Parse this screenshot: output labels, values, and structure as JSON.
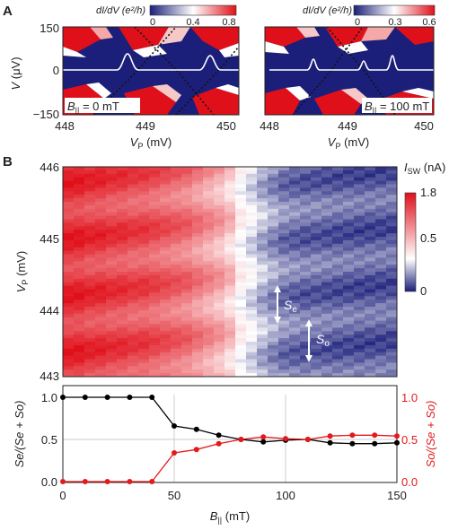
{
  "panel_a": {
    "letter": "A",
    "y_label_main": "V",
    "y_label_unit": " (μV)",
    "y_ticks": [
      "150",
      "0",
      "−150"
    ],
    "x_label_main": "V",
    "x_label_sub": "P",
    "x_label_unit": " (mV)",
    "left": {
      "cbar_title": "dI/dV (e²/h)",
      "cbar_ticks": [
        "0",
        "0.4",
        "0.8"
      ],
      "x_ticks": [
        "448",
        "449",
        "450"
      ],
      "field_main": "B",
      "field_sub": "||",
      "field_value": " = 0 mT"
    },
    "right": {
      "cbar_title": "dI/dV (e²/h)",
      "cbar_ticks": [
        "0",
        "0.3",
        "0.6"
      ],
      "x_ticks": [
        "448",
        "449",
        "450"
      ],
      "field_main": "B",
      "field_sub": "||",
      "field_value": " = 100 mT"
    }
  },
  "panel_b": {
    "letter": "B",
    "heatmap": {
      "y_label_main": "V",
      "y_label_sub": "P",
      "y_label_unit": " (mV)",
      "y_ticks": [
        "446",
        "445",
        "444",
        "443"
      ],
      "cbar_label_main": "I",
      "cbar_label_sub": "SW",
      "cbar_label_unit": " (nA)",
      "cbar_ticks": [
        "1.8",
        "0.5",
        "0"
      ],
      "arrow_even_main": "S",
      "arrow_even_sub": "e",
      "arrow_odd_main": "S",
      "arrow_odd_sub": "o"
    },
    "fraction_plot": {
      "x_label_main": "B",
      "x_label_sub": "||",
      "x_label_unit": " (mT)",
      "x_ticks": [
        "0",
        "50",
        "100",
        "150"
      ],
      "y_ticks_left": [
        "1.0",
        "0.5",
        "0.0"
      ],
      "y_ticks_right": [
        "1.0",
        "0.5",
        "0.0"
      ],
      "left_label": "Se/(Se + So)",
      "right_label": "So/(Se + So)"
    }
  },
  "colors": {
    "red": "#e0101a",
    "white": "#ffffff",
    "navy": "#1b1f7a",
    "series_even": "#000000",
    "series_odd": "#e31a1c"
  },
  "chart_data": [
    {
      "type": "line",
      "xlabel": "B|| (mT)",
      "ylabel": "Se/(Se + So)",
      "y2label": "So/(Se + So)",
      "xlim": [
        0,
        150
      ],
      "ylim": [
        0,
        1.1
      ],
      "grid": true,
      "x": [
        0,
        10,
        20,
        30,
        40,
        50,
        60,
        70,
        80,
        90,
        100,
        110,
        120,
        130,
        140,
        150
      ],
      "series": [
        {
          "values": [
            1.0,
            1.0,
            1.0,
            1.0,
            1.0,
            0.66,
            0.62,
            0.55,
            0.5,
            0.47,
            0.49,
            0.5,
            0.46,
            0.45,
            0.45,
            0.46
          ]
        },
        {
          "values": [
            0.0,
            0.0,
            0.0,
            0.0,
            0.0,
            0.34,
            0.38,
            0.45,
            0.5,
            0.53,
            0.51,
            0.5,
            0.54,
            0.55,
            0.55,
            0.54
          ]
        }
      ]
    },
    {
      "type": "heatmap",
      "xlabel": "B|| (mT)",
      "ylabel": "VP (mV)",
      "xlim": [
        0,
        150
      ],
      "ylim": [
        443,
        446
      ],
      "colorbar_label": "ISW (nA)",
      "colorbar_range": [
        0,
        1.8
      ],
      "x_column_values": [
        0,
        5,
        10,
        15,
        20,
        25,
        30,
        35,
        40,
        45,
        50,
        55,
        60,
        65,
        70,
        75,
        80,
        85,
        90,
        95,
        100,
        105,
        110,
        115,
        120,
        125,
        130,
        135,
        140,
        145,
        150
      ],
      "column_mean_isw": [
        1.6,
        1.6,
        1.55,
        1.55,
        1.5,
        1.5,
        1.45,
        1.45,
        1.4,
        1.35,
        1.3,
        1.25,
        1.15,
        1.05,
        0.95,
        0.8,
        0.55,
        0.45,
        0.35,
        0.28,
        0.22,
        0.2,
        0.18,
        0.18,
        0.17,
        0.16,
        0.16,
        0.15,
        0.15,
        0.15,
        0.15
      ]
    },
    {
      "type": "heatmap",
      "xlabel": "VP (mV)",
      "ylabel": "V (μV)",
      "xlim": [
        448,
        450.2
      ],
      "ylim": [
        -150,
        150
      ],
      "colorbar_label": "dI/dV (e²/h)",
      "colorbar_range": [
        0,
        0.8
      ],
      "annotation": "B|| = 0 mT"
    },
    {
      "type": "heatmap",
      "xlabel": "VP (mV)",
      "ylabel": "V (μV)",
      "xlim": [
        448,
        450.2
      ],
      "ylim": [
        -150,
        150
      ],
      "colorbar_label": "dI/dV (e²/h)",
      "colorbar_range": [
        0,
        0.6
      ],
      "annotation": "B|| = 100 mT"
    }
  ]
}
